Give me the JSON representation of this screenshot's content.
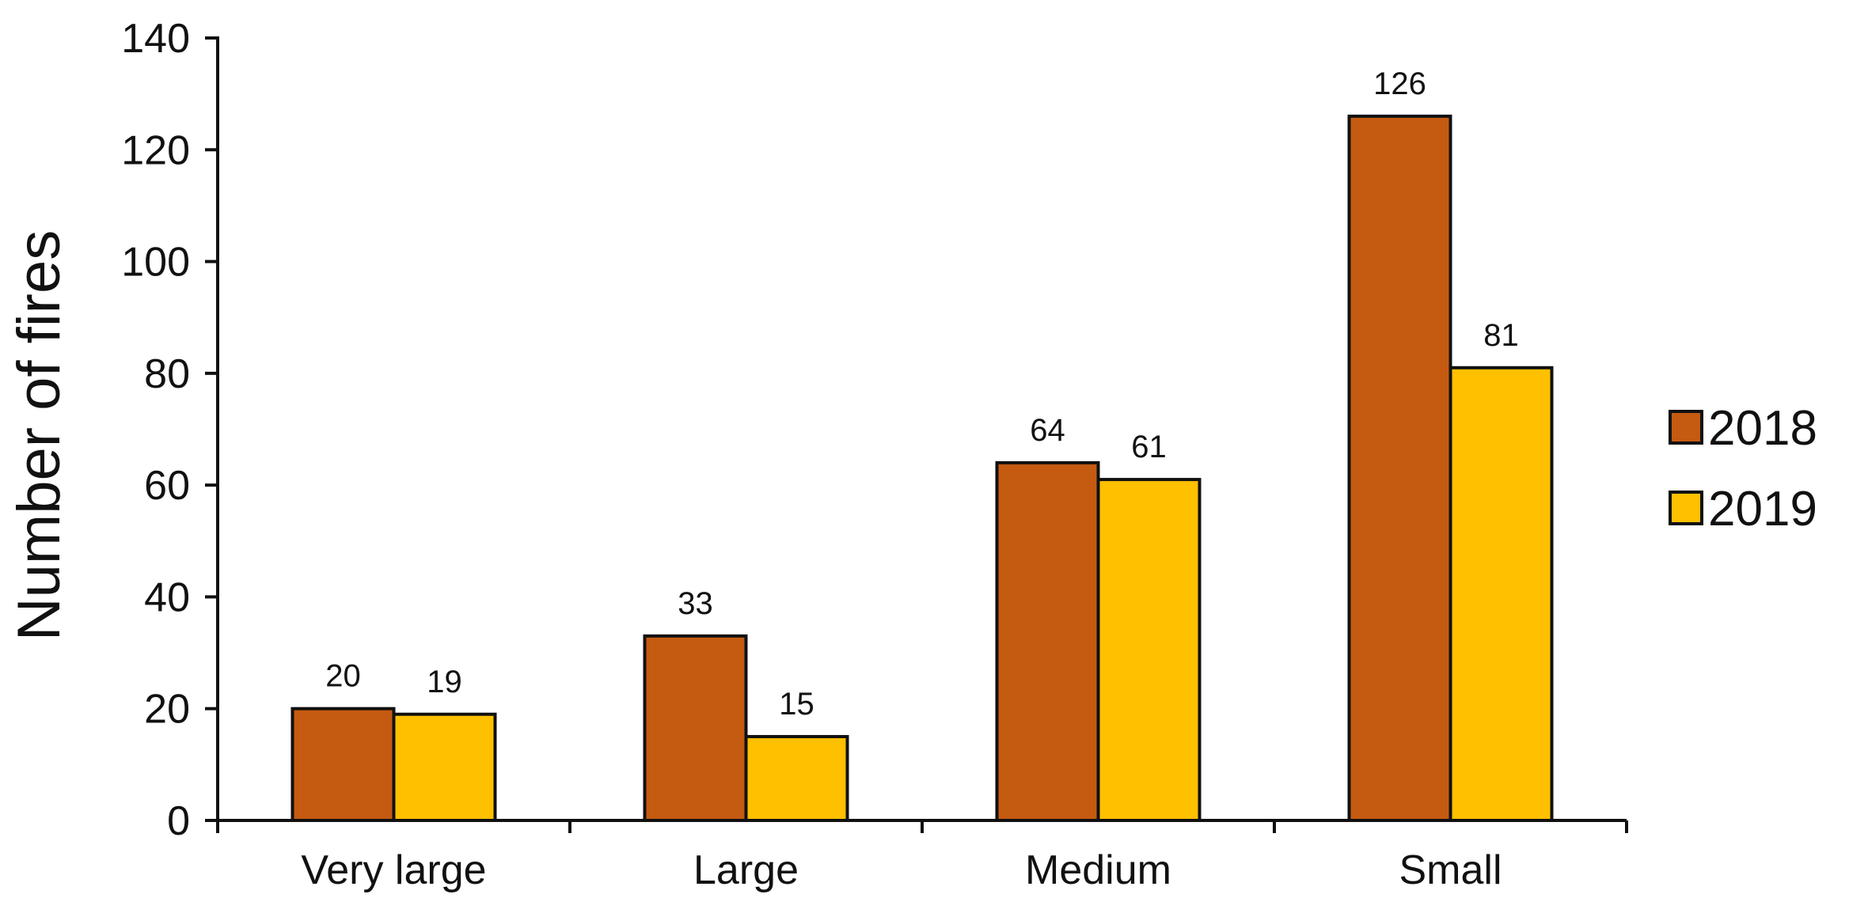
{
  "chart_data": {
    "type": "bar",
    "title": "",
    "xlabel": "",
    "ylabel": "Number of fires",
    "ylim": [
      0,
      140
    ],
    "yticks": [
      0,
      20,
      40,
      60,
      80,
      100,
      120,
      140
    ],
    "categories": [
      "Very large",
      "Large",
      "Medium",
      "Small"
    ],
    "series": [
      {
        "name": "2018",
        "values": [
          20,
          33,
          64,
          126
        ],
        "color": "#C55A11"
      },
      {
        "name": "2019",
        "values": [
          19,
          15,
          61,
          81
        ],
        "color": "#FFC000"
      }
    ],
    "grid": false,
    "legend_position": "right",
    "data_labels": true
  }
}
